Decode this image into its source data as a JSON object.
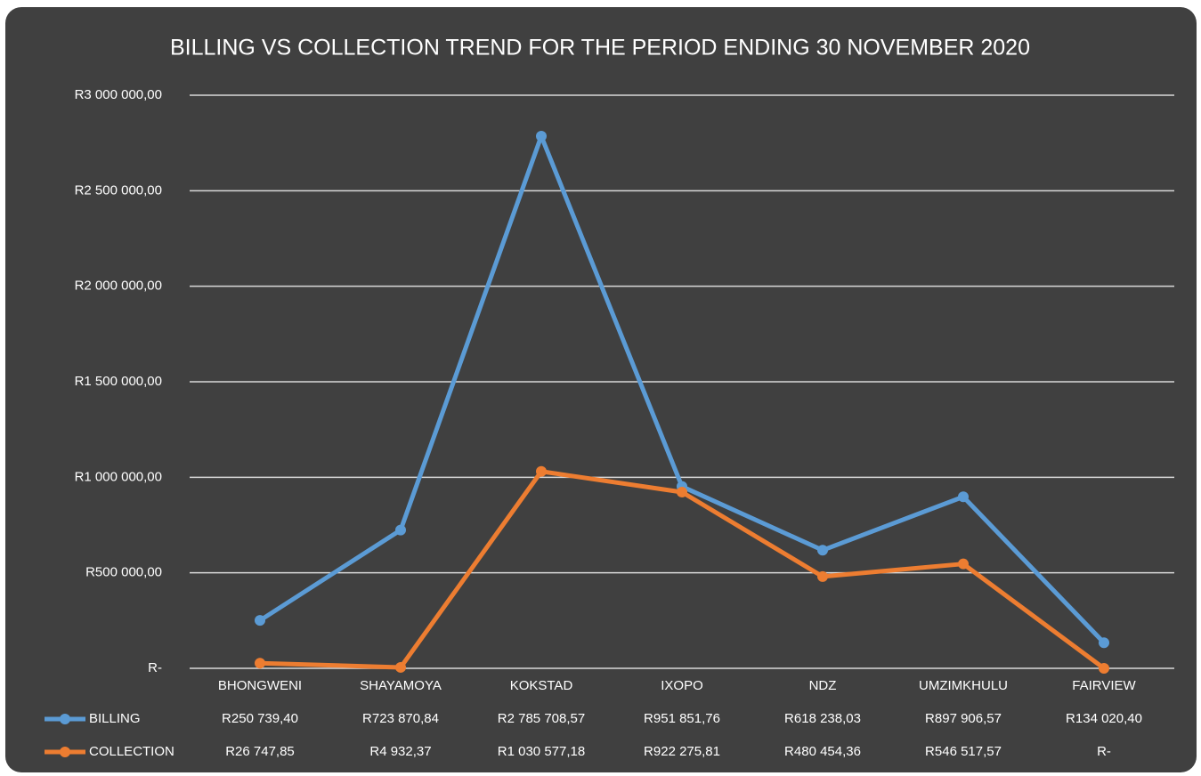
{
  "chart_data": {
    "type": "line",
    "title": "BILLING VS COLLECTION TREND FOR THE PERIOD ENDING 30 NOVEMBER 2020",
    "categories": [
      "BHONGWENI",
      "SHAYAMOYA",
      "KOKSTAD",
      "IXOPO",
      "NDZ",
      "UMZIMKHULU",
      "FAIRVIEW"
    ],
    "series": [
      {
        "name": "BILLING",
        "color": "#5b9bd5",
        "values": [
          250739.4,
          723870.84,
          2785708.57,
          951851.76,
          618238.03,
          897906.57,
          134020.4
        ],
        "value_labels": [
          "R250 739,40",
          "R723 870,84",
          "R2 785 708,57",
          "R951 851,76",
          "R618 238,03",
          "R897 906,57",
          "R134 020,40"
        ]
      },
      {
        "name": "COLLECTION",
        "color": "#ed7d31",
        "values": [
          26747.85,
          4932.37,
          1030577.18,
          922275.81,
          480454.36,
          546517.57,
          0
        ],
        "value_labels": [
          "R26 747,85",
          "R4 932,37",
          "R1 030 577,18",
          "R922 275,81",
          "R480 454,36",
          "R546 517,57",
          "R-"
        ]
      }
    ],
    "ylim": [
      0,
      3000000
    ],
    "yticks": [
      {
        "value": 0,
        "label": "R-"
      },
      {
        "value": 500000,
        "label": "R500 000,00"
      },
      {
        "value": 1000000,
        "label": "R1 000 000,00"
      },
      {
        "value": 1500000,
        "label": "R1 500 000,00"
      },
      {
        "value": 2000000,
        "label": "R2 000 000,00"
      },
      {
        "value": 2500000,
        "label": "R2 500 000,00"
      },
      {
        "value": 3000000,
        "label": "R3 000 000,00"
      }
    ],
    "grid": true
  }
}
